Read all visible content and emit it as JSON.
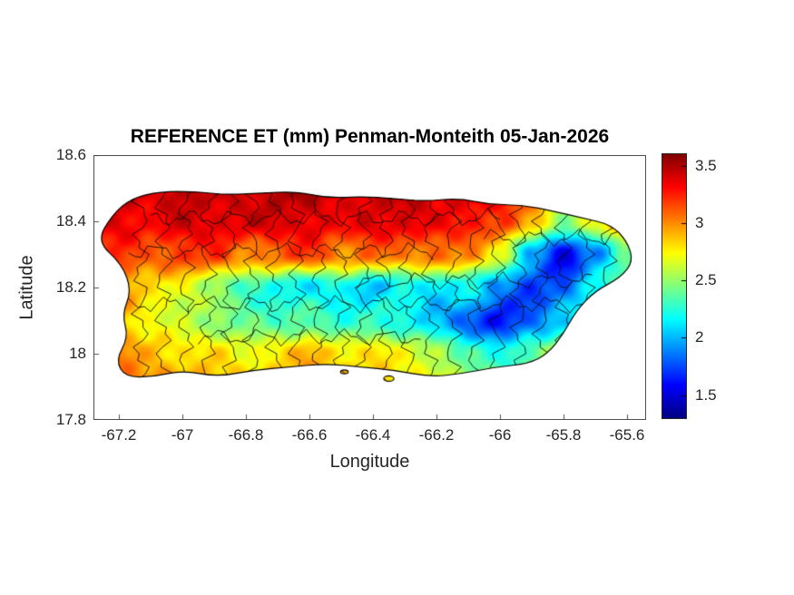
{
  "chart_data": {
    "type": "heatmap",
    "title": "REFERENCE ET (mm) Penman-Monteith 05-Jan-2026",
    "xlabel": "Longitude",
    "ylabel": "Latitude",
    "xlim": [
      -67.28,
      -65.54
    ],
    "ylim": [
      17.8,
      18.6
    ],
    "x_tick_values": [
      -67.2,
      -67.0,
      -66.8,
      -66.6,
      -66.4,
      -66.2,
      -66.0,
      -65.8,
      -65.6
    ],
    "x_tick_labels": [
      "-67.2",
      "-67",
      "-66.8",
      "-66.6",
      "-66.4",
      "-66.2",
      "-66",
      "-65.8",
      "-65.6"
    ],
    "y_tick_values": [
      18.6,
      18.4,
      18.2,
      18.0,
      17.8
    ],
    "y_tick_labels": [
      "18.6",
      "18.4",
      "18.2",
      "18",
      "17.8"
    ],
    "grid": false,
    "colormap": "jet",
    "legend_position": "colorbar-right",
    "colorbar": {
      "clim": [
        1.3,
        3.6
      ],
      "tick_values": [
        3.5,
        3.0,
        2.5,
        2.0,
        1.5
      ],
      "tick_labels": [
        "3.5",
        "3",
        "2.5",
        "2",
        "1.5"
      ]
    },
    "et_field": {
      "units": "mm",
      "lons": [
        -67.3,
        -67.2,
        -67.1,
        -67.0,
        -66.9,
        -66.8,
        -66.7,
        -66.6,
        -66.5,
        -66.4,
        -66.3,
        -66.2,
        -66.1,
        -66.0,
        -65.9,
        -65.8,
        -65.7,
        -65.6
      ],
      "lats": [
        18.5,
        18.4,
        18.3,
        18.2,
        18.1,
        18.0,
        17.9
      ],
      "values_mm": [
        [
          3.3,
          3.4,
          3.4,
          3.5,
          3.4,
          3.4,
          3.5,
          3.5,
          3.4,
          3.4,
          3.5,
          3.4,
          3.4,
          3.4,
          3.2,
          3.0,
          2.9,
          2.8
        ],
        [
          3.3,
          3.4,
          3.3,
          3.4,
          3.4,
          3.4,
          3.4,
          3.4,
          3.3,
          3.4,
          3.4,
          3.3,
          3.3,
          3.2,
          2.9,
          2.5,
          2.7,
          3.1
        ],
        [
          3.1,
          3.2,
          3.1,
          3.2,
          3.2,
          3.0,
          3.1,
          3.2,
          3.0,
          3.1,
          3.0,
          3.1,
          3.0,
          2.7,
          2.0,
          1.5,
          1.9,
          2.4
        ],
        [
          2.9,
          3.0,
          2.8,
          2.7,
          2.5,
          2.3,
          2.2,
          2.1,
          2.2,
          2.0,
          2.2,
          2.1,
          2.2,
          1.9,
          1.7,
          1.8,
          2.2,
          2.4
        ],
        [
          2.9,
          2.9,
          2.7,
          2.6,
          2.5,
          2.4,
          2.3,
          2.4,
          2.2,
          2.3,
          2.2,
          2.0,
          1.8,
          1.6,
          1.8,
          2.1,
          2.4,
          2.6
        ],
        [
          3.0,
          3.0,
          2.9,
          2.8,
          2.8,
          2.7,
          2.8,
          2.9,
          2.8,
          2.8,
          2.7,
          2.6,
          2.3,
          2.2,
          2.4,
          2.6,
          2.7,
          2.8
        ],
        [
          3.1,
          3.1,
          3.0,
          3.0,
          2.9,
          2.9,
          2.9,
          3.0,
          2.9,
          2.9,
          2.8,
          2.7,
          2.6,
          2.5,
          2.6,
          2.7,
          2.8,
          2.9
        ]
      ]
    },
    "island_outline": [
      [
        -67.16,
        18.47
      ],
      [
        -67.07,
        18.49
      ],
      [
        -66.96,
        18.49
      ],
      [
        -66.86,
        18.48
      ],
      [
        -66.76,
        18.485
      ],
      [
        -66.64,
        18.49
      ],
      [
        -66.54,
        18.47
      ],
      [
        -66.44,
        18.475
      ],
      [
        -66.34,
        18.47
      ],
      [
        -66.24,
        18.46
      ],
      [
        -66.13,
        18.47
      ],
      [
        -66.03,
        18.45
      ],
      [
        -65.93,
        18.45
      ],
      [
        -65.83,
        18.43
      ],
      [
        -65.74,
        18.41
      ],
      [
        -65.65,
        18.39
      ],
      [
        -65.6,
        18.34
      ],
      [
        -65.58,
        18.28
      ],
      [
        -65.62,
        18.23
      ],
      [
        -65.7,
        18.19
      ],
      [
        -65.76,
        18.13
      ],
      [
        -65.8,
        18.06
      ],
      [
        -65.85,
        18.0
      ],
      [
        -65.91,
        17.97
      ],
      [
        -66.01,
        17.96
      ],
      [
        -66.12,
        17.94
      ],
      [
        -66.22,
        17.93
      ],
      [
        -66.33,
        17.95
      ],
      [
        -66.44,
        17.96
      ],
      [
        -66.55,
        17.97
      ],
      [
        -66.66,
        17.96
      ],
      [
        -66.78,
        17.95
      ],
      [
        -66.89,
        17.93
      ],
      [
        -67.0,
        17.95
      ],
      [
        -67.09,
        17.93
      ],
      [
        -67.18,
        17.93
      ],
      [
        -67.21,
        17.98
      ],
      [
        -67.17,
        18.05
      ],
      [
        -67.19,
        18.12
      ],
      [
        -67.16,
        18.19
      ],
      [
        -67.19,
        18.27
      ],
      [
        -67.27,
        18.34
      ],
      [
        -67.22,
        18.42
      ]
    ],
    "islets": [
      {
        "lon": -66.49,
        "lat": 17.945,
        "rx": 0.012,
        "ry": 0.006
      },
      {
        "lon": -66.35,
        "lat": 17.925,
        "rx": 0.016,
        "ry": 0.008
      }
    ],
    "municipal_boundaries": {
      "meridians": [
        -67.13,
        -67.06,
        -66.99,
        -66.92,
        -66.85,
        -66.78,
        -66.71,
        -66.64,
        -66.57,
        -66.5,
        -66.43,
        -66.36,
        -66.29,
        -66.22,
        -66.15,
        -66.08,
        -66.01,
        -65.94,
        -65.87,
        -65.8,
        -65.73,
        -65.66
      ],
      "parallels": [
        {
          "lat": 18.15,
          "from": -67.2,
          "to": -65.62
        },
        {
          "lat": 18.41,
          "from": -67.1,
          "to": -66.0
        },
        {
          "lat": 18.31,
          "from": -67.17,
          "to": -66.2
        },
        {
          "lat": 18.05,
          "from": -66.95,
          "to": -66.25
        },
        {
          "lat": 18.22,
          "from": -66.45,
          "to": -65.7
        },
        {
          "lat": 18.35,
          "from": -66.05,
          "to": -65.62
        }
      ]
    }
  }
}
